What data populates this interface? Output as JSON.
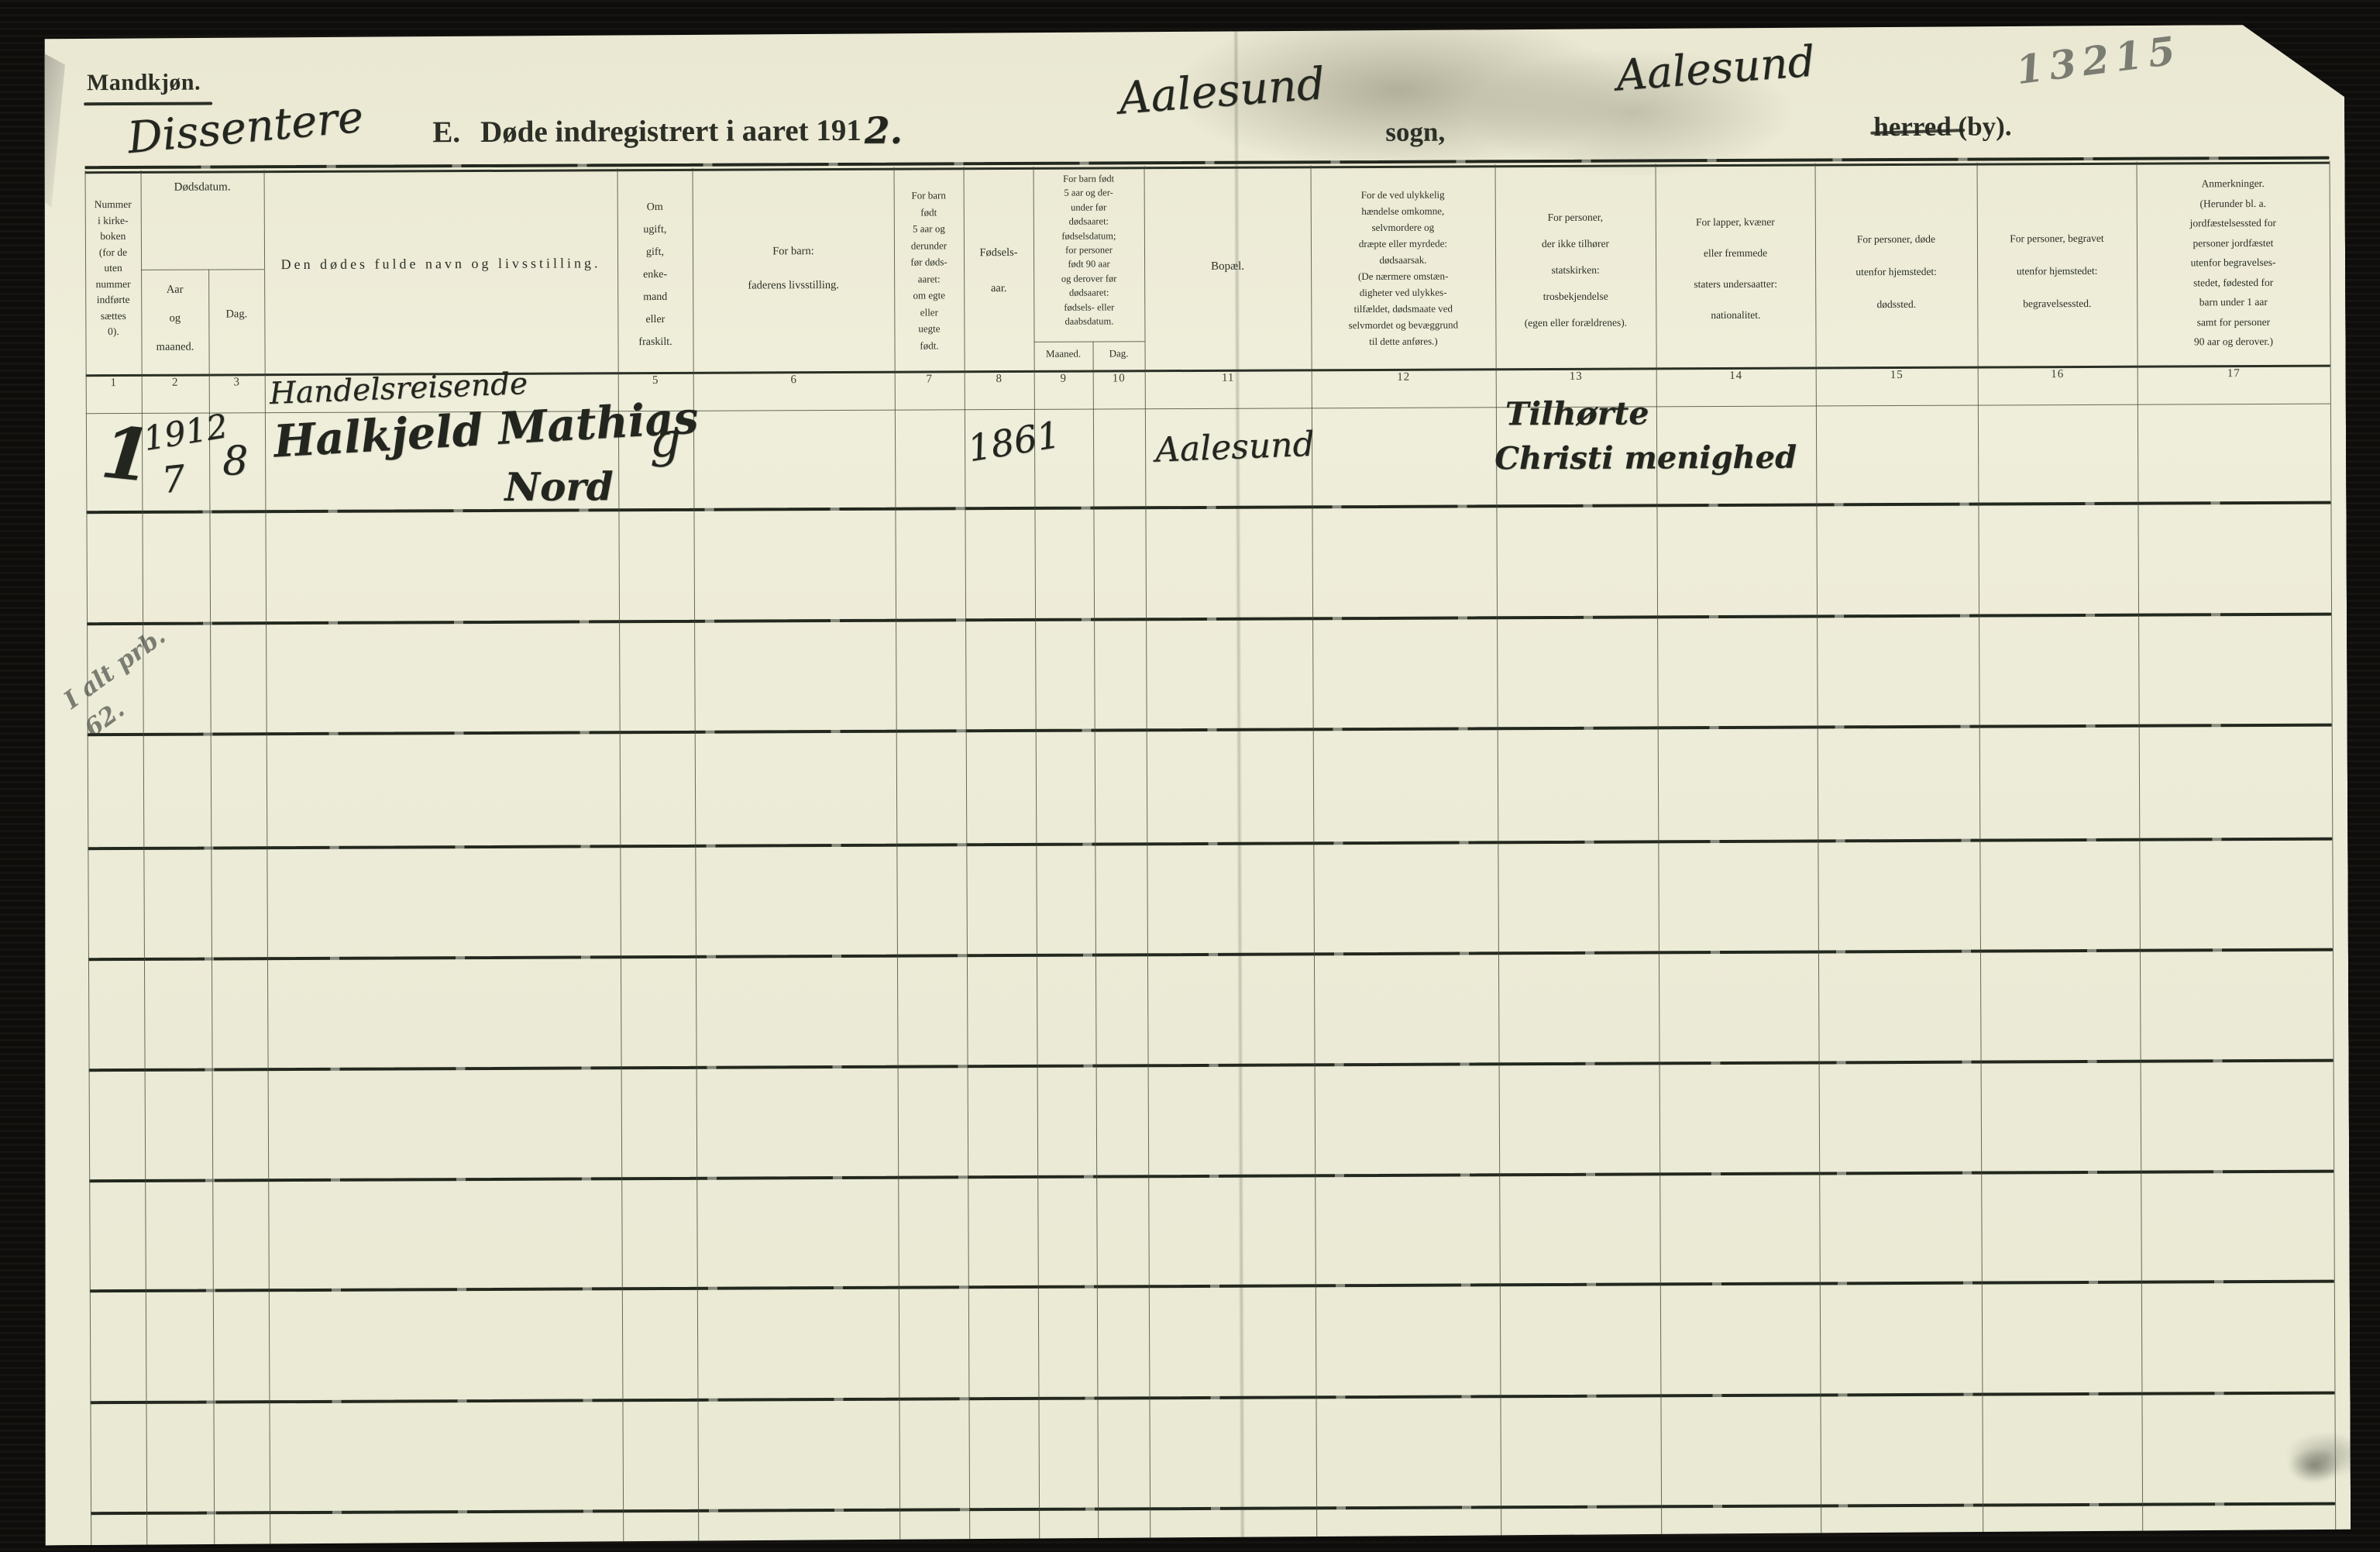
{
  "page": {
    "section_label": "Mandkjøn.",
    "registry_number_pencil": "13215",
    "dissenter_note": "Dissentere",
    "title_e": "E.",
    "title_rest": "Døde indregistrert i aaret 191",
    "title_year_handwritten": "2.",
    "parish_handwritten": "Aalesund",
    "parish_label": "sogn,",
    "district_handwritten": "Aalesund",
    "district_label": "herred (by).",
    "margin_note_pencil": [
      "I alt prb.",
      "62."
    ]
  },
  "table": {
    "group_headers": {
      "dodsdatum": {
        "label": "Dødsdatum.",
        "sub_left": [
          "Aar",
          "og",
          "maaned."
        ],
        "sub_right": [
          "Dag."
        ]
      },
      "fodsels_daabsdatum": {
        "lines": [
          "For barn født",
          "5 aar og der-",
          "under før",
          "dødsaaret:",
          "fødselsdatum;",
          "for personer",
          "født 90 aar",
          "og derover før",
          "dødsaaret:",
          "fødsels- eller",
          "daabsdatum."
        ],
        "sub_left": [
          "Maaned."
        ],
        "sub_right": [
          "Dag."
        ]
      }
    },
    "headers": {
      "col1": [
        "Nummer",
        "i kirke-",
        "boken",
        "(for de",
        "uten",
        "nummer",
        "indførte",
        "sættes",
        "0)."
      ],
      "col4": [
        "Den dødes fulde navn og livsstilling."
      ],
      "col5": [
        "Om",
        "ugift,",
        "gift,",
        "enke-",
        "mand",
        "eller",
        "fraskilt."
      ],
      "col6": [
        "For barn:",
        "faderens livsstilling."
      ],
      "col7": [
        "For barn",
        "født",
        "5 aar og",
        "derunder",
        "før døds-",
        "aaret:",
        "om egte",
        "eller",
        "uegte",
        "født."
      ],
      "col8": [
        "Fødsels-",
        "aar."
      ],
      "col11": [
        "Bopæl."
      ],
      "col12": [
        "For de ved ulykkelig",
        "hændelse omkomne,",
        "selvmordere og",
        "dræpte eller myrdede:",
        "dødsaarsak.",
        "(De nærmere omstæn-",
        "digheter ved ulykkes-",
        "tilfældet, dødsmaate ved",
        "selvmordet og bevæggrund",
        "til dette anføres.)"
      ],
      "col13": [
        "For personer,",
        "der ikke tilhører",
        "statskirken:",
        "trosbekjendelse",
        "(egen eller forældrenes)."
      ],
      "col14": [
        "For lapper, kvæner",
        "eller fremmede",
        "staters undersaatter:",
        "nationalitet."
      ],
      "col15": [
        "For personer, døde",
        "utenfor hjemstedet:",
        "dødssted."
      ],
      "col16": [
        "For personer, begravet",
        "utenfor hjemstedet:",
        "begravelsessted."
      ],
      "col17": [
        "Anmerkninger.",
        "(Herunder bl. a.",
        "jordfæstelsessted for",
        "personer jordfæstet",
        "utenfor begravelses-",
        "stedet, fødested for",
        "barn under 1 aar",
        "samt for personer",
        "90 aar og derover.)"
      ]
    },
    "column_numbers": [
      "1",
      "2",
      "3",
      "",
      "5",
      "6",
      "7",
      "8",
      "9",
      "10",
      "11",
      "12",
      "13",
      "14",
      "15",
      "16",
      "17"
    ],
    "row1": {
      "church_book_number": "1",
      "death_year": "1912",
      "death_month": "7",
      "death_day": "8",
      "occupation": "Handelsreisende",
      "name": "Halkjeld Mathias",
      "name_cont": "Nord",
      "marital_status": "g",
      "birth_year": "1861",
      "residence": "Aalesund",
      "faith_line1": "Tilhørte",
      "faith_line2": "Christi menighed"
    }
  },
  "colors": {
    "paper": "#ecebd7",
    "printed_ink": "#2c2f26",
    "handwriting_ink": "#23261f",
    "pencil": "#7b7d72",
    "grid_line": "#262b21"
  }
}
